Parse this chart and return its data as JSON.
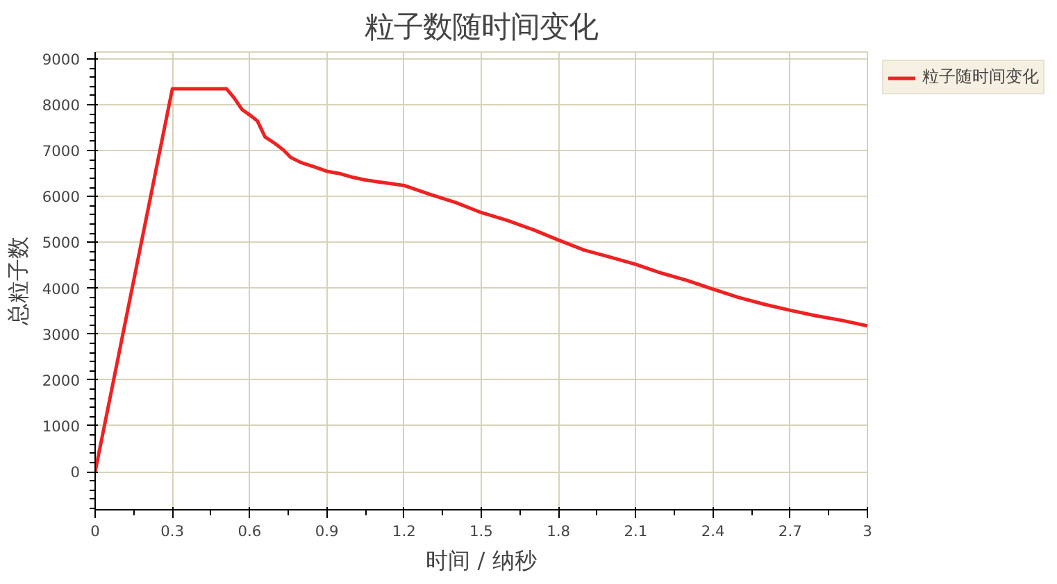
{
  "chart_data": {
    "type": "line",
    "title": "粒子数随时间变化",
    "xlabel": "时间 / 纳秒",
    "ylabel": "总粒子数",
    "x": [
      0,
      0.3,
      0.51,
      0.54,
      0.57,
      0.6,
      0.63,
      0.66,
      0.7,
      0.73,
      0.76,
      0.8,
      0.85,
      0.9,
      0.95,
      1.0,
      1.05,
      1.1,
      1.15,
      1.2,
      1.3,
      1.4,
      1.5,
      1.6,
      1.7,
      1.8,
      1.9,
      2.0,
      2.1,
      2.2,
      2.3,
      2.4,
      2.5,
      2.6,
      2.7,
      2.8,
      2.9,
      3.0
    ],
    "series": [
      {
        "name": "粒子随时间变化",
        "color": "#ee2222",
        "values": [
          0,
          8350,
          8350,
          8150,
          7900,
          7780,
          7650,
          7300,
          7150,
          7020,
          6850,
          6740,
          6650,
          6550,
          6500,
          6420,
          6360,
          6320,
          6280,
          6240,
          6050,
          5870,
          5650,
          5480,
          5280,
          5050,
          4830,
          4680,
          4520,
          4330,
          4170,
          3980,
          3800,
          3650,
          3520,
          3400,
          3300,
          3180
        ]
      }
    ],
    "xlim": [
      0,
      3
    ],
    "ylim": [
      -830,
      9150
    ],
    "xticks": [
      0,
      0.3,
      0.6,
      0.9,
      1.2,
      1.5,
      1.8,
      2.1,
      2.4,
      2.7,
      3
    ],
    "yticks": [
      0,
      1000,
      2000,
      3000,
      4000,
      5000,
      6000,
      7000,
      8000,
      9000
    ],
    "grid": true,
    "legend": "top right",
    "marker": "none",
    "line_style": "solid"
  }
}
